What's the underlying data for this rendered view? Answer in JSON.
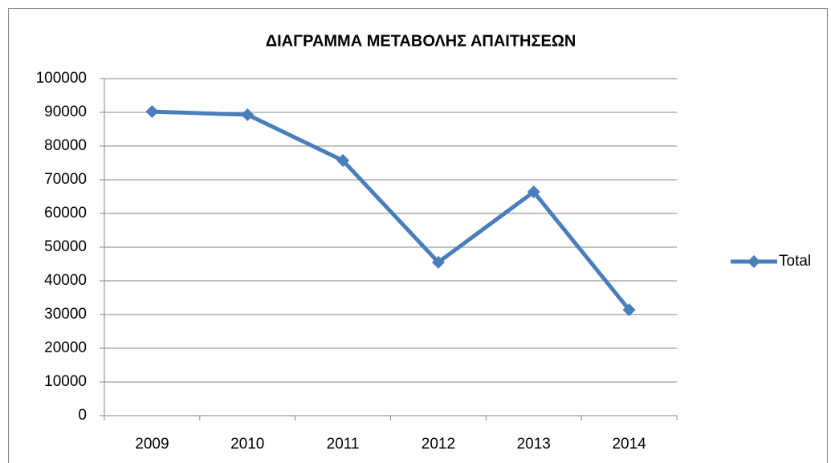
{
  "chart_data": {
    "type": "line",
    "title": "ΔΙΑΓΡΑΜΜΑ ΜΕΤΑΒΟΛΗΣ ΑΠΑΙΤΗΣΕΩΝ",
    "categories": [
      "2009",
      "2010",
      "2011",
      "2012",
      "2013",
      "2014"
    ],
    "series": [
      {
        "name": "Total",
        "color": "#4a7ebb",
        "values": [
          90200,
          89300,
          75700,
          45500,
          66400,
          31400
        ]
      }
    ],
    "ylim": [
      0,
      100000
    ],
    "yticks": [
      0,
      10000,
      20000,
      30000,
      40000,
      50000,
      60000,
      70000,
      80000,
      90000,
      100000
    ],
    "grid": true,
    "legend": "right"
  }
}
